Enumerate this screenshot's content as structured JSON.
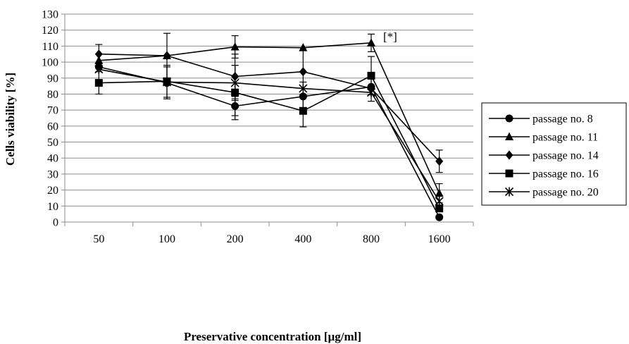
{
  "chart_data": {
    "type": "line",
    "title": "",
    "xlabel": "Preservative concentration [µg/ml]",
    "ylabel": "Cells viability [%]",
    "categories": [
      "50",
      "100",
      "200",
      "400",
      "800",
      "1600"
    ],
    "ylim": [
      0,
      130
    ],
    "ytick_step": 10,
    "grid": "horizontal",
    "legend_position": "right",
    "series": [
      {
        "name": "passage no. 8",
        "marker": "circle",
        "values": [
          97,
          87,
          72.5,
          78.5,
          84.5,
          3
        ],
        "errors": [
          null,
          10,
          6,
          9,
          null,
          null
        ]
      },
      {
        "name": "passage no. 11",
        "marker": "triangle",
        "values": [
          101,
          104,
          109.5,
          109,
          112,
          18
        ],
        "errors": [
          null,
          14,
          7,
          null,
          5.5,
          6
        ]
      },
      {
        "name": "passage no. 14",
        "marker": "diamond",
        "values": [
          105,
          104,
          91,
          94,
          83.5,
          38
        ],
        "errors": [
          6,
          null,
          14,
          15,
          8,
          7
        ]
      },
      {
        "name": "passage no. 16",
        "marker": "square",
        "values": [
          87,
          88,
          81,
          69.5,
          91.5,
          8.5
        ],
        "errors": [
          7,
          10,
          17,
          10,
          12,
          null
        ]
      },
      {
        "name": "passage no. 20",
        "marker": "star",
        "values": [
          95.5,
          87.5,
          87,
          83.5,
          81,
          13
        ],
        "errors": [
          null,
          null,
          11,
          null,
          null,
          null
        ]
      }
    ],
    "annotations": [
      {
        "text": "[*]",
        "category": "800",
        "y": 114
      }
    ]
  }
}
